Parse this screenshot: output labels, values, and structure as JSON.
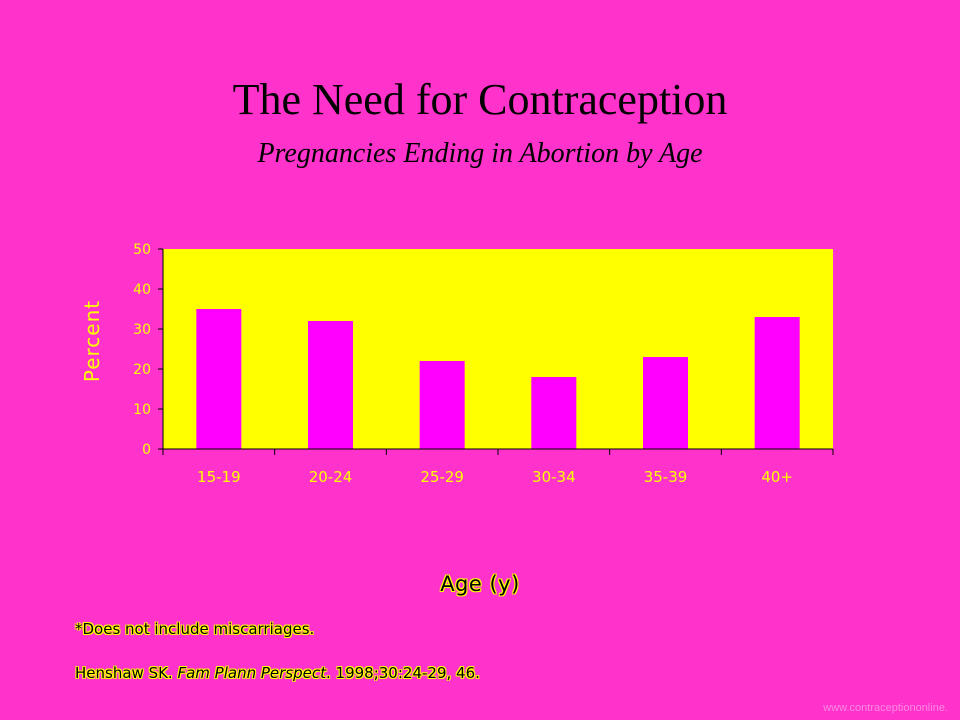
{
  "slide": {
    "title": "The Need for Contraception",
    "subtitle": "Pregnancies Ending in Abortion by Age",
    "note": "*Does not include miscarriages.",
    "citation_author": "Henshaw SK. ",
    "citation_journal": "Fam Plann Perspect",
    "citation_rest": ". 1998;30:24-29, 46.",
    "watermark": "www.contraceptiononline."
  },
  "colors": {
    "background": "#ff33cc",
    "plot_area": "#ffff00",
    "bar": "#ff00ff"
  },
  "chart_data": {
    "type": "bar",
    "categories": [
      "15-19",
      "20-24",
      "25-29",
      "30-34",
      "35-39",
      "40+"
    ],
    "values": [
      35,
      32,
      22,
      18,
      23,
      33
    ],
    "xlabel": "Age (y)",
    "ylabel": "Percent",
    "ylim": [
      0,
      50
    ],
    "yticks": [
      0,
      10,
      20,
      30,
      40,
      50
    ],
    "grid": false,
    "legend": "none"
  }
}
